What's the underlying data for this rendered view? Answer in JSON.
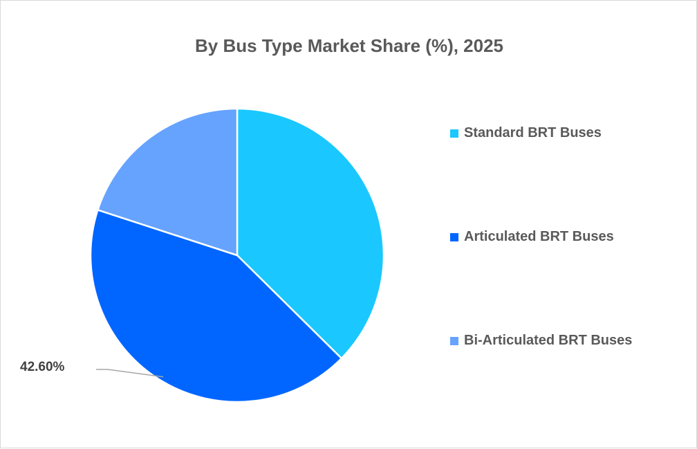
{
  "chart_data": {
    "type": "pie",
    "title": "By Bus Type Market Share (%), 2025",
    "categories": [
      "Standard BRT Buses",
      "Articulated BRT Buses",
      "Bi-Articulated BRT Buses"
    ],
    "values": [
      37.4,
      42.6,
      20.0
    ],
    "colors": [
      "#1AC8FF",
      "#0066FF",
      "#66A3FF"
    ],
    "data_labels": [
      "",
      "42.60%",
      ""
    ],
    "legend_position": "right",
    "start_angle": "12 o'clock, clockwise"
  }
}
